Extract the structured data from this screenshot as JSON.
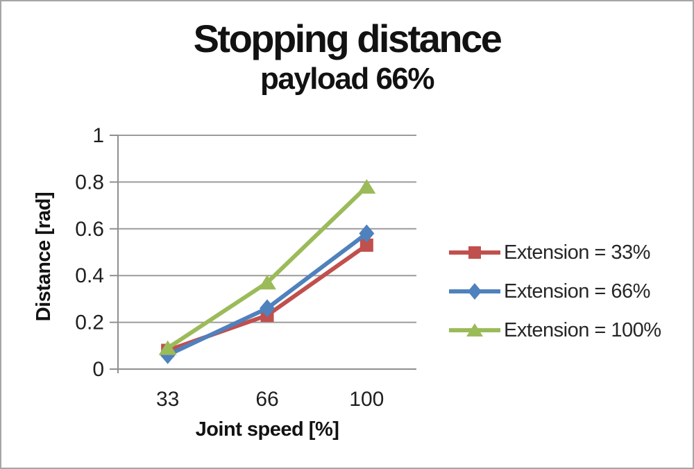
{
  "chart_data": {
    "type": "line",
    "title": "Stopping distance",
    "subtitle": "payload 66%",
    "xlabel": "Joint speed [%]",
    "ylabel": "Distance [rad]",
    "categories": [
      "33",
      "66",
      "100"
    ],
    "series": [
      {
        "name": "Extension = 33%",
        "marker": "square",
        "color": "#C0504D",
        "values": [
          0.08,
          0.23,
          0.53
        ]
      },
      {
        "name": "Extension = 66%",
        "marker": "diamond",
        "color": "#4F81BD",
        "values": [
          0.06,
          0.26,
          0.58
        ]
      },
      {
        "name": "Extension = 100%",
        "marker": "triangle",
        "color": "#9BBB59",
        "values": [
          0.09,
          0.37,
          0.78
        ]
      }
    ],
    "ylim": [
      0,
      1
    ],
    "yticks": [
      0,
      0.2,
      0.4,
      0.6,
      0.8,
      1
    ],
    "ytick_labels": [
      "0",
      "0.2",
      "0.4",
      "0.6",
      "0.8",
      "1"
    ],
    "grid": true,
    "legend_position": "right"
  },
  "colors": {
    "grid": "#9b9b9b",
    "axis": "#8f8f8f",
    "tick_text": "#1f1f1f",
    "title_text": "#121212",
    "legend_text": "#262626",
    "border": "#a6a6a6",
    "background": "#ffffff"
  }
}
